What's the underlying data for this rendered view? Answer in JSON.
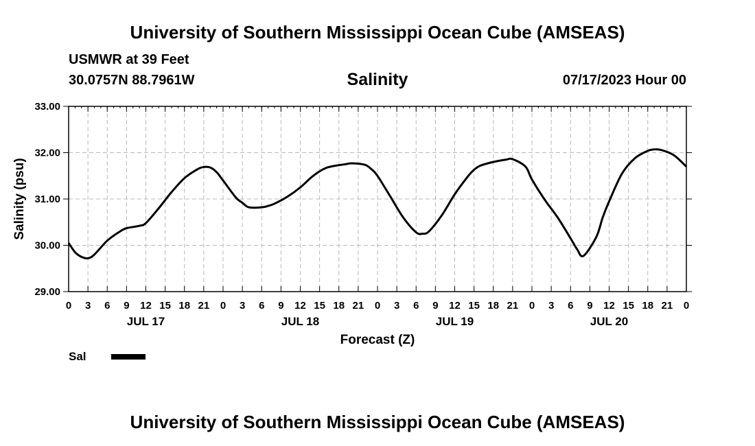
{
  "header": {
    "title": "University of Southern Mississippi Ocean Cube (AMSEAS)",
    "station": "USMWR at 39 Feet",
    "coords": "30.0757N  88.7961W",
    "variable": "Salinity",
    "datetime": "07/17/2023 Hour 00"
  },
  "footer": {
    "title": "University of Southern Mississippi Ocean Cube (AMSEAS)"
  },
  "chart_data": {
    "type": "line",
    "title": "Salinity",
    "xlabel": "Forecast (Z)",
    "ylabel": "Salinity (psu)",
    "xlim": [
      0,
      96
    ],
    "ylim": [
      29,
      33
    ],
    "grid": true,
    "x_ticks": [
      "0",
      "3",
      "6",
      "9",
      "12",
      "15",
      "18",
      "21",
      "0",
      "3",
      "6",
      "9",
      "12",
      "15",
      "18",
      "21",
      "0",
      "3",
      "6",
      "9",
      "12",
      "15",
      "18",
      "21",
      "0",
      "3",
      "6",
      "9",
      "12",
      "15",
      "18",
      "21",
      "0"
    ],
    "day_labels": [
      {
        "label": "JUL 17",
        "hour": 12
      },
      {
        "label": "JUL 18",
        "hour": 36
      },
      {
        "label": "JUL 19",
        "hour": 60
      },
      {
        "label": "JUL 20",
        "hour": 84
      }
    ],
    "y_ticks": [
      "29.00",
      "30.00",
      "31.00",
      "32.00",
      "33.00"
    ],
    "y_tick_values": [
      29,
      30,
      31,
      32,
      33
    ],
    "legend": [
      {
        "name": "Sal",
        "color": "#000000"
      }
    ],
    "series": [
      {
        "name": "Sal",
        "x": [
          0,
          1,
          2,
          3,
          4,
          6,
          8,
          9,
          11,
          12,
          14,
          16,
          18,
          20,
          21,
          22,
          23,
          24,
          26,
          27,
          28,
          30,
          31,
          32,
          34,
          36,
          38,
          40,
          42,
          43,
          44,
          46,
          47,
          48,
          50,
          52,
          54,
          55,
          56,
          58,
          60,
          62,
          63,
          64,
          66,
          68,
          69,
          71,
          72,
          74,
          76,
          78,
          79,
          80,
          82,
          83,
          84,
          86,
          88,
          90,
          91,
          92,
          94,
          96
        ],
        "y": [
          30.05,
          29.85,
          29.75,
          29.72,
          29.8,
          30.1,
          30.3,
          30.37,
          30.42,
          30.48,
          30.8,
          31.15,
          31.45,
          31.64,
          31.69,
          31.68,
          31.58,
          31.4,
          31.03,
          30.92,
          30.82,
          30.82,
          30.85,
          30.9,
          31.05,
          31.25,
          31.5,
          31.67,
          31.73,
          31.75,
          31.77,
          31.74,
          31.65,
          31.5,
          31.05,
          30.6,
          30.28,
          30.25,
          30.3,
          30.65,
          31.1,
          31.48,
          31.63,
          31.72,
          31.8,
          31.85,
          31.86,
          31.7,
          31.42,
          30.98,
          30.6,
          30.15,
          29.92,
          29.77,
          30.18,
          30.6,
          30.95,
          31.55,
          31.88,
          32.04,
          32.07,
          32.06,
          31.95,
          31.7
        ]
      }
    ]
  }
}
